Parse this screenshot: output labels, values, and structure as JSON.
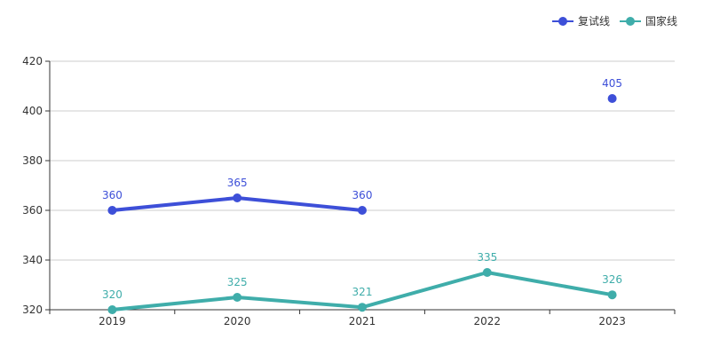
{
  "chart_data": {
    "type": "line",
    "title": "",
    "xlabel": "",
    "ylabel": "",
    "categories": [
      "2019",
      "2020",
      "2021",
      "2022",
      "2023"
    ],
    "ylim": [
      320,
      420
    ],
    "yticks": [
      320,
      340,
      360,
      380,
      400,
      420
    ],
    "grid": true,
    "legend_position": "top-right",
    "series": [
      {
        "name": "复试线",
        "color": "#3d4fd8",
        "values": [
          360,
          365,
          360,
          null,
          405
        ]
      },
      {
        "name": "国家线",
        "color": "#3fadaa",
        "values": [
          320,
          325,
          321,
          335,
          326
        ]
      }
    ]
  }
}
